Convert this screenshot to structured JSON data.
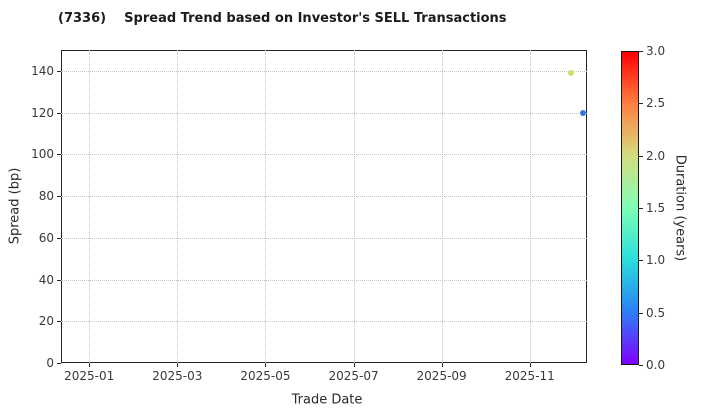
{
  "chart_data": {
    "type": "scatter",
    "title": "(7336)    Spread Trend based on Investor's SELL Transactions",
    "xlabel": "Trade Date",
    "ylabel": "Spread (bp)",
    "x_tick_labels": [
      "2025-01",
      "2025-03",
      "2025-05",
      "2025-07",
      "2025-09",
      "2025-11"
    ],
    "x_tick_months": [
      0,
      2,
      4,
      6,
      8,
      10
    ],
    "xlim_months": [
      -0.64,
      11.3
    ],
    "y_ticks": [
      0,
      20,
      40,
      60,
      80,
      100,
      120,
      140
    ],
    "ylim": [
      0,
      150
    ],
    "grid": true,
    "grid_style": "dotted",
    "points": [
      {
        "approx_date": "2025-11-30",
        "x_month": 10.93,
        "spread_bp": 139,
        "duration_years": 2.0,
        "color": "#cdde6b"
      },
      {
        "approx_date": "2025-12-07",
        "x_month": 11.2,
        "spread_bp": 120,
        "duration_years": 0.5,
        "color": "#2f7ae2"
      }
    ],
    "colorbar": {
      "label": "Duration (years)",
      "ticks": [
        "0.0",
        "0.5",
        "1.0",
        "1.5",
        "2.0",
        "2.5",
        "3.0"
      ],
      "min": 0,
      "max": 3,
      "cmap": "rainbow",
      "gradient_stops": [
        "#7f00ff",
        "#2b7ff6",
        "#2bdddd",
        "#7fffb4",
        "#d4dd7f",
        "#ff7f42",
        "#ff0000"
      ],
      "position": "right"
    },
    "colors": {
      "background": "#ffffff",
      "spine": "#262626",
      "grid": "#c4c4c4",
      "tick_label": "#3a3a3a",
      "title_text": "#1c1c1c"
    }
  }
}
